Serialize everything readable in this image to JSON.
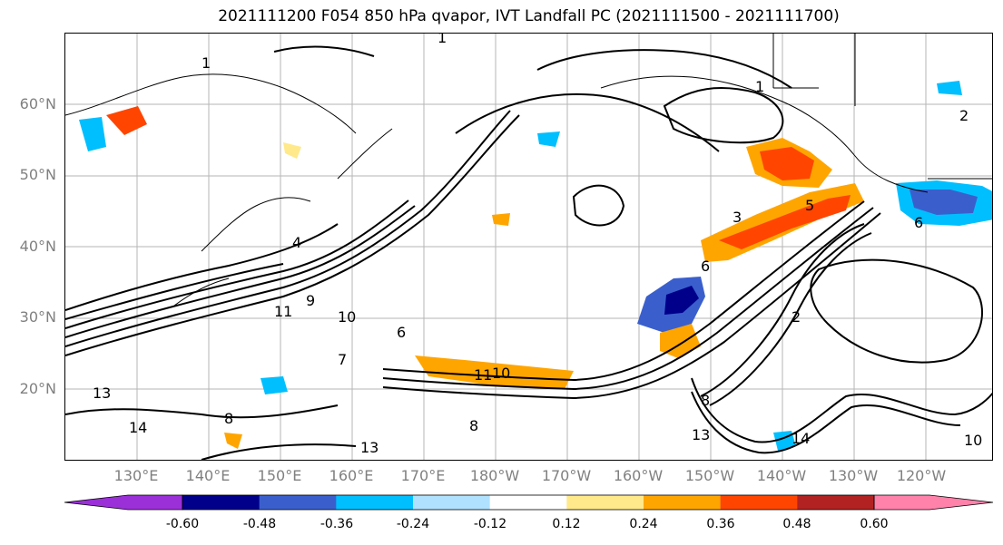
{
  "title": "2021111200 F054 850 hPa qvapor, IVT Landfall PC (2021111500 - 2021111700)",
  "lat_labels": [
    "60°N",
    "50°N",
    "40°N",
    "30°N",
    "20°N"
  ],
  "lon_labels": [
    "130°E",
    "140°E",
    "150°E",
    "160°E",
    "170°E",
    "180°W",
    "170°W",
    "160°W",
    "150°W",
    "140°W",
    "130°W",
    "120°W"
  ],
  "colorbar": {
    "colors": [
      "#9b30d9",
      "#00008b",
      "#3a5fcd",
      "#00bfff",
      "#b0e2ff",
      "#ffffff",
      "#ffe98a",
      "#ffa500",
      "#ff4500",
      "#b22222",
      "#ff82ab"
    ],
    "tick_labels": [
      "-0.60",
      "-0.48",
      "-0.36",
      "-0.24",
      "-0.12",
      "0.12",
      "0.24",
      "0.36",
      "0.48",
      "0.60"
    ]
  },
  "contour_labels": [
    "1",
    "1",
    "11",
    "9",
    "10",
    "6",
    "13",
    "14",
    "8",
    "13",
    "14",
    "11",
    "10",
    "7",
    "8",
    "6",
    "5",
    "3",
    "2",
    "2",
    "1",
    "4",
    "6",
    "10",
    "13",
    "8"
  ]
}
